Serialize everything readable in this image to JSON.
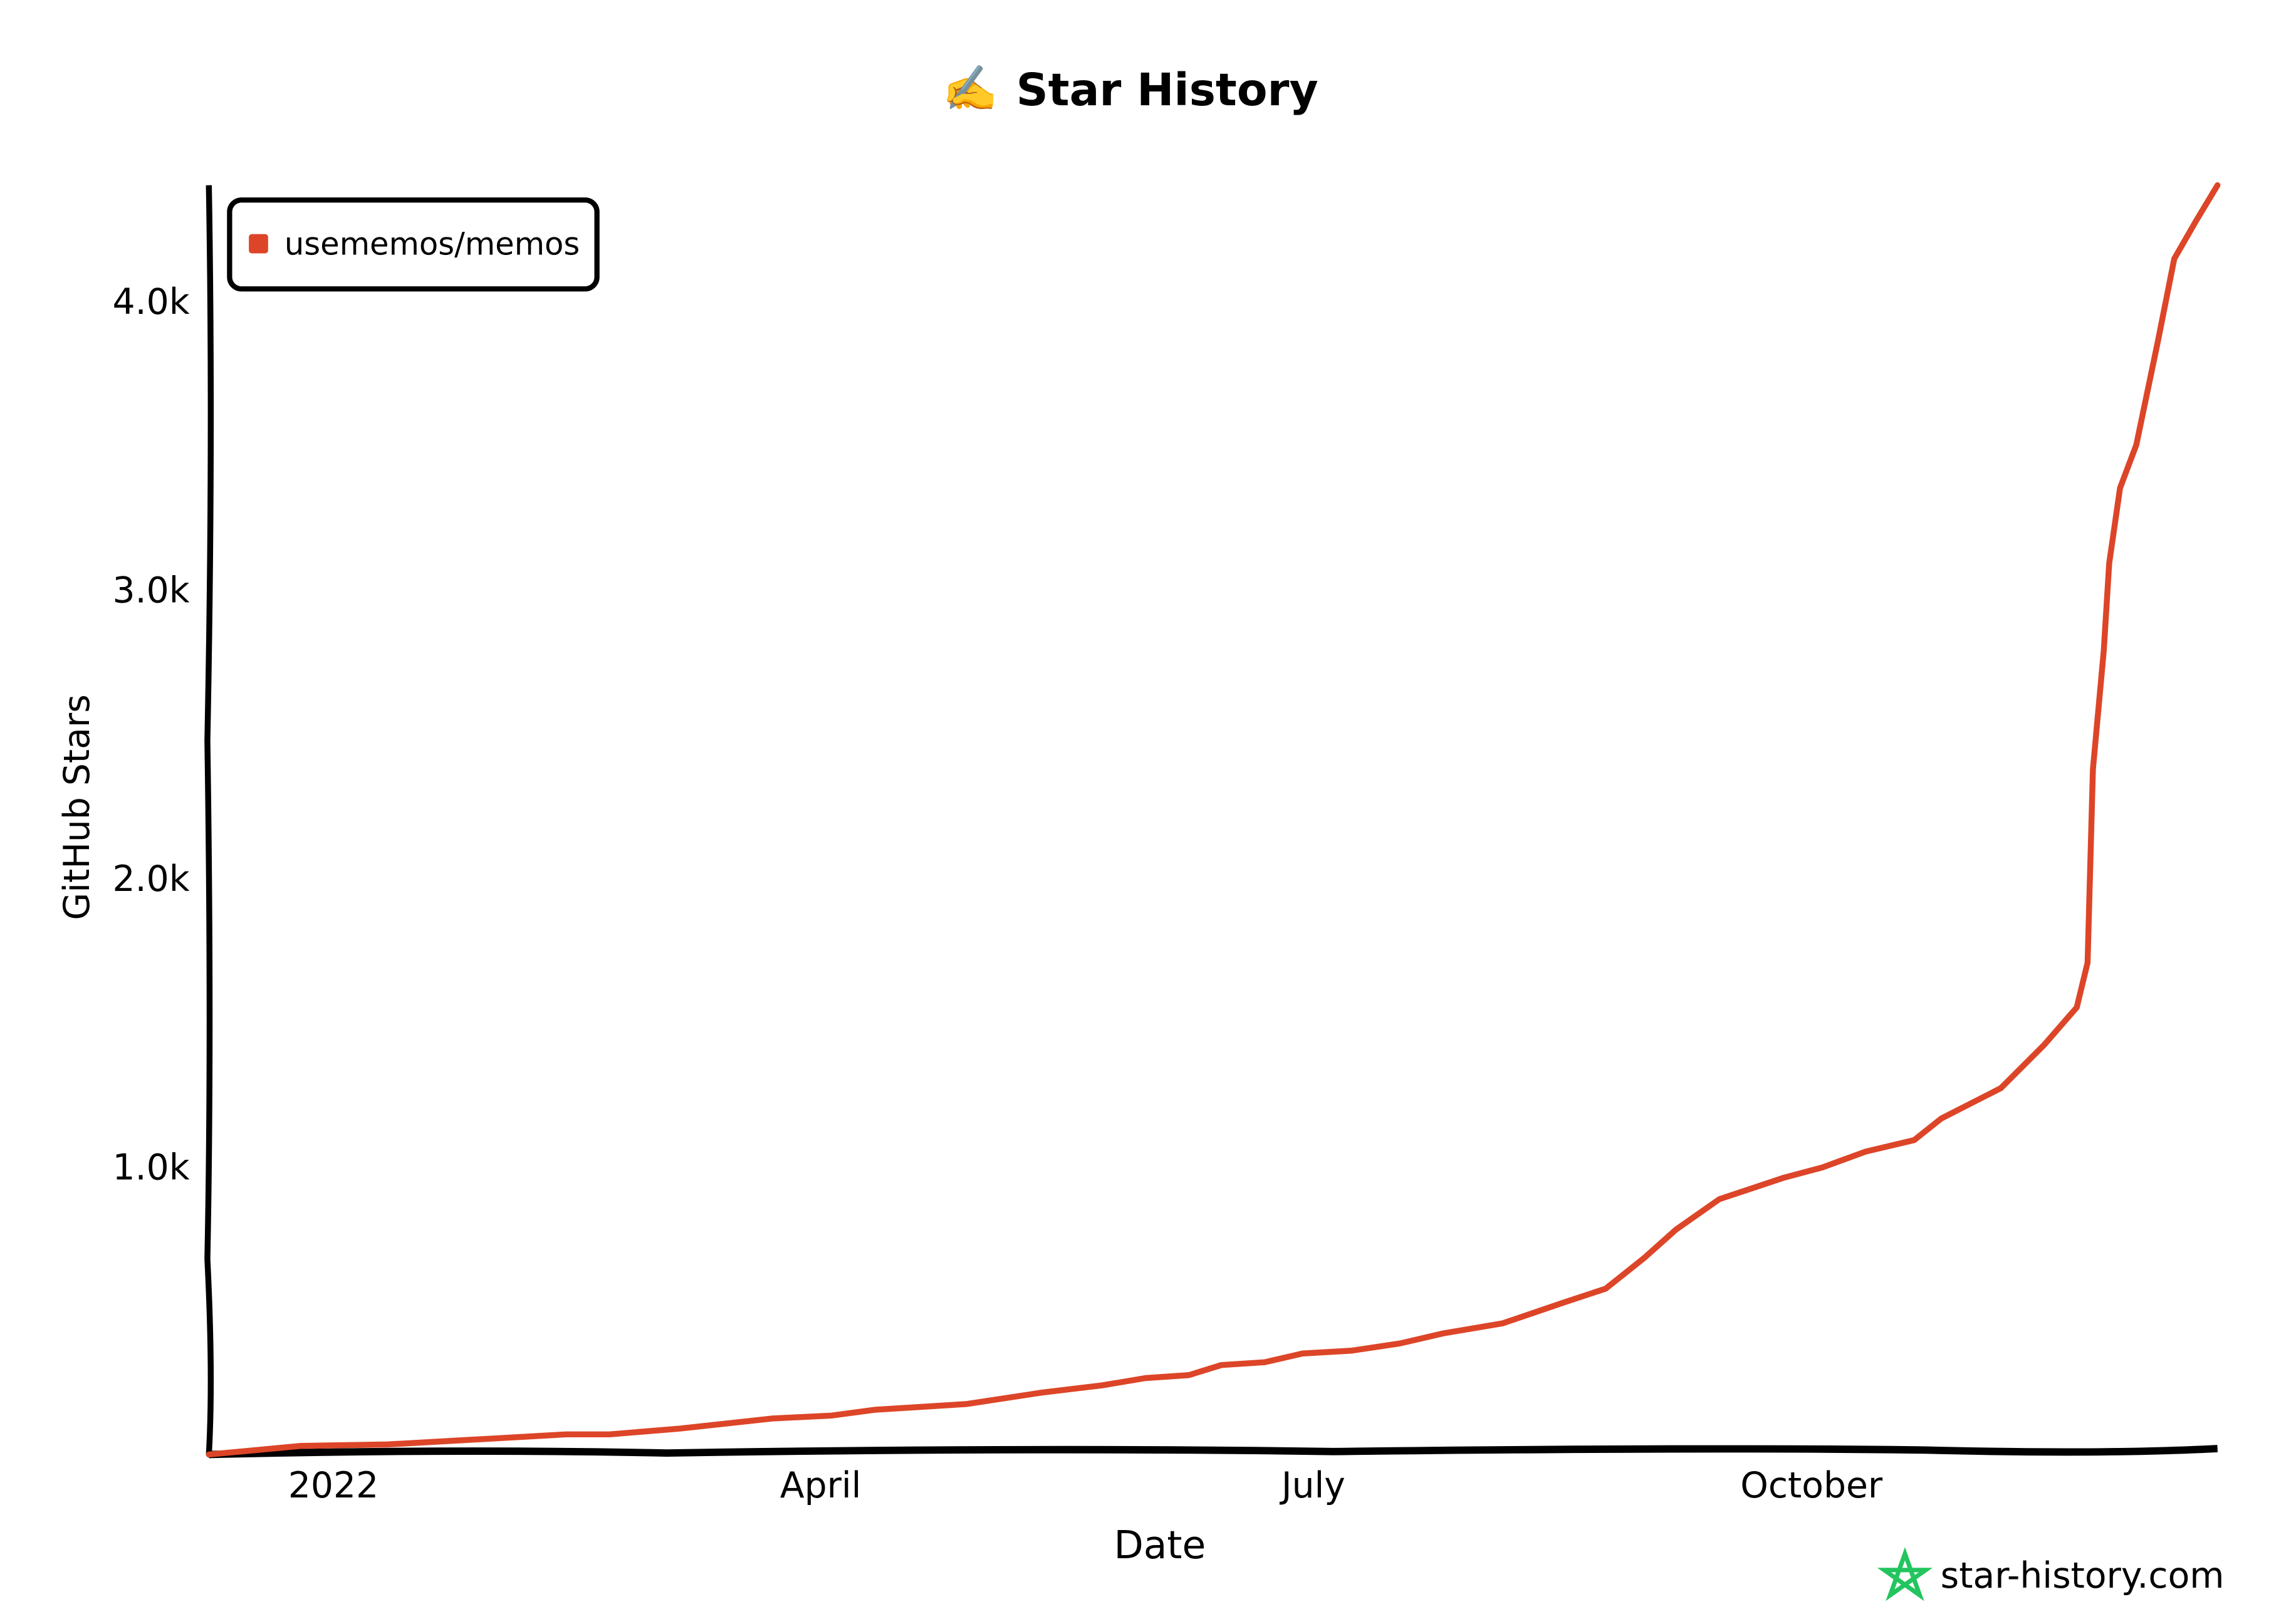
{
  "chart_data": {
    "type": "line",
    "title": "Star History",
    "title_icon": "writing-hand-emoji",
    "title_emoji": "✍️",
    "xlabel": "Date",
    "ylabel": "GitHub Stars",
    "xlim": [
      "2021-12-09",
      "2022-12-15"
    ],
    "ylim": [
      0,
      4400
    ],
    "x_ticks": [
      {
        "date": "2022-01-01",
        "label": "2022"
      },
      {
        "date": "2022-04-01",
        "label": "April"
      },
      {
        "date": "2022-07-01",
        "label": "July"
      },
      {
        "date": "2022-10-01",
        "label": "October"
      }
    ],
    "y_ticks": [
      {
        "value": 1000,
        "label": "1.0k"
      },
      {
        "value": 2000,
        "label": "2.0k"
      },
      {
        "value": 3000,
        "label": "3.0k"
      },
      {
        "value": 4000,
        "label": "4.0k"
      }
    ],
    "grid": false,
    "legend_position": "top-left",
    "series": [
      {
        "name": "usememos/memos",
        "color": "#dd4528",
        "points": [
          [
            "2021-12-09",
            0
          ],
          [
            "2021-12-26",
            30
          ],
          [
            "2022-01-11",
            35
          ],
          [
            "2022-01-30",
            55
          ],
          [
            "2022-02-13",
            70
          ],
          [
            "2022-02-21",
            70
          ],
          [
            "2022-03-06",
            90
          ],
          [
            "2022-03-23",
            125
          ],
          [
            "2022-04-03",
            135
          ],
          [
            "2022-04-11",
            155
          ],
          [
            "2022-04-28",
            175
          ],
          [
            "2022-05-12",
            215
          ],
          [
            "2022-05-23",
            240
          ],
          [
            "2022-05-31",
            265
          ],
          [
            "2022-06-08",
            275
          ],
          [
            "2022-06-14",
            310
          ],
          [
            "2022-06-22",
            320
          ],
          [
            "2022-06-29",
            350
          ],
          [
            "2022-07-08",
            360
          ],
          [
            "2022-07-17",
            385
          ],
          [
            "2022-07-25",
            420
          ],
          [
            "2022-08-05",
            455
          ],
          [
            "2022-08-16",
            525
          ],
          [
            "2022-08-24",
            575
          ],
          [
            "2022-08-31",
            680
          ],
          [
            "2022-09-06",
            780
          ],
          [
            "2022-09-14",
            885
          ],
          [
            "2022-09-26",
            960
          ],
          [
            "2022-10-03",
            995
          ],
          [
            "2022-10-11",
            1050
          ],
          [
            "2022-10-20",
            1090
          ],
          [
            "2022-10-25",
            1165
          ],
          [
            "2022-11-05",
            1270
          ],
          [
            "2022-11-13",
            1420
          ],
          [
            "2022-11-19",
            1550
          ],
          [
            "2022-11-21",
            1705
          ],
          [
            "2022-11-22",
            2375
          ],
          [
            "2022-11-24",
            2785
          ],
          [
            "2022-11-25",
            3090
          ],
          [
            "2022-11-27",
            3350
          ],
          [
            "2022-11-30",
            3500
          ],
          [
            "2022-12-04",
            3860
          ],
          [
            "2022-12-07",
            4145
          ],
          [
            "2022-12-11",
            4275
          ],
          [
            "2022-12-15",
            4400
          ]
        ]
      }
    ]
  },
  "watermark": {
    "text": "star-history.com",
    "icon": "star-history-logo-icon",
    "color": "#22c55e",
    "text_color": "#666666"
  }
}
